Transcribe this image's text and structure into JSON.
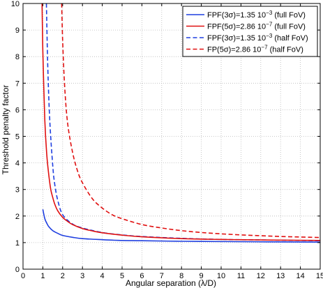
{
  "chart_data": {
    "type": "line",
    "xlabel": "Angular separation (λ/D)",
    "ylabel": "Threshold penalty factor",
    "xlim": [
      0,
      15
    ],
    "ylim": [
      0,
      10
    ],
    "xticks": [
      "0",
      "1",
      "2",
      "3",
      "4",
      "5",
      "6",
      "7",
      "8",
      "9",
      "10",
      "11",
      "12",
      "13",
      "14",
      "15"
    ],
    "yticks": [
      "0",
      "1",
      "2",
      "3",
      "4",
      "5",
      "6",
      "7",
      "8",
      "9",
      "10"
    ],
    "grid": true,
    "legend_position": "top-right",
    "series": [
      {
        "name": "FPF(3σ)=1.35 10⁻³ (full FoV)",
        "legend": {
          "main": "FPF(3σ)=1.35 10",
          "sup": "−3",
          "tail": " (full FoV)"
        },
        "color": "#1f3fe0",
        "style": "solid",
        "x": [
          1.0,
          1.1,
          1.2,
          1.3,
          1.5,
          1.75,
          2.0,
          2.5,
          3.0,
          4.0,
          5.0,
          6.0,
          8.0,
          10.0,
          12.0,
          15.0
        ],
        "y": [
          2.25,
          1.9,
          1.73,
          1.6,
          1.45,
          1.35,
          1.27,
          1.2,
          1.15,
          1.11,
          1.08,
          1.07,
          1.05,
          1.04,
          1.03,
          1.02
        ]
      },
      {
        "name": "FPF(5σ)=2.86 10⁻⁷ (full FoV)",
        "legend": {
          "main": "FPF(5σ)=2.86 10",
          "sup": "−7",
          "tail": " (full FoV)"
        },
        "color": "#e01010",
        "style": "solid",
        "x": [
          0.96,
          1.0,
          1.1,
          1.2,
          1.3,
          1.4,
          1.5,
          1.6,
          1.75,
          2.0,
          2.25,
          2.5,
          3.0,
          3.5,
          4.0,
          5.0,
          6.0,
          8.0,
          10.0,
          12.0,
          15.0
        ],
        "y": [
          10.0,
          8.2,
          5.6,
          4.3,
          3.55,
          3.0,
          2.7,
          2.45,
          2.2,
          1.95,
          1.8,
          1.68,
          1.53,
          1.44,
          1.37,
          1.28,
          1.22,
          1.15,
          1.12,
          1.1,
          1.08
        ]
      },
      {
        "name": "FPF(3σ)=1.35 10⁻³ (half FoV)",
        "legend": {
          "main": "FPF(3σ)=1.35 10",
          "sup": "−3",
          "tail": " (half FoV)"
        },
        "color": "#1f3fe0",
        "style": "dashed",
        "x": [
          1.18,
          1.25,
          1.35,
          1.5,
          1.6,
          1.75,
          2.0,
          2.5,
          3.0,
          4.0,
          5.0,
          6.0,
          8.0,
          10.0,
          12.0,
          15.0
        ],
        "y": [
          10.0,
          7.6,
          5.6,
          3.9,
          3.2,
          2.6,
          2.05,
          1.7,
          1.55,
          1.38,
          1.29,
          1.23,
          1.16,
          1.12,
          1.1,
          1.07
        ]
      },
      {
        "name": "FP(5σ)=2.86 10⁻⁷ (half FoV)",
        "legend": {
          "main": "FP(5σ)=2.86 10",
          "sup": "−7",
          "tail": " (half FoV)"
        },
        "color": "#e01010",
        "style": "dashed",
        "x": [
          1.95,
          2.0,
          2.1,
          2.25,
          2.5,
          2.75,
          3.0,
          3.5,
          4.0,
          4.5,
          5.0,
          6.0,
          7.0,
          8.0,
          9.0,
          10.0,
          11.0,
          12.0,
          13.0,
          14.0,
          15.0
        ],
        "y": [
          10.0,
          8.6,
          6.9,
          5.5,
          4.4,
          3.7,
          3.25,
          2.65,
          2.3,
          2.05,
          1.9,
          1.68,
          1.55,
          1.45,
          1.38,
          1.33,
          1.29,
          1.26,
          1.23,
          1.21,
          1.19
        ]
      }
    ]
  }
}
